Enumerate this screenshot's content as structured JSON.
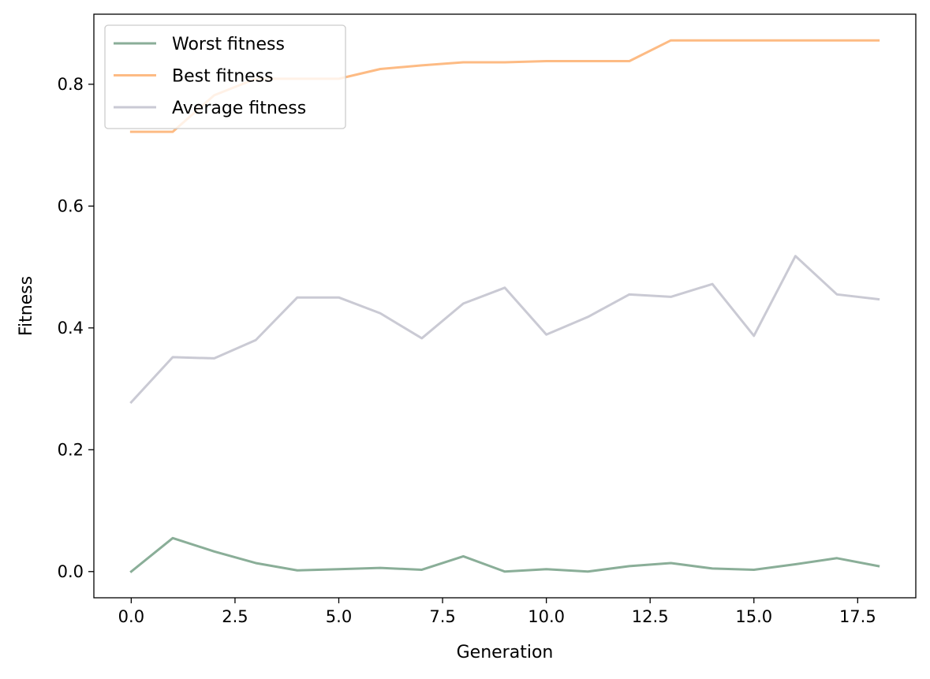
{
  "chart_data": {
    "type": "line",
    "title": "",
    "xlabel": "Generation",
    "ylabel": "Fitness",
    "xlim": [
      -0.9,
      18.9
    ],
    "ylim": [
      -0.043,
      0.915
    ],
    "xticks": [
      0.0,
      2.5,
      5.0,
      7.5,
      10.0,
      12.5,
      15.0,
      17.5
    ],
    "xtick_labels": [
      "0.0",
      "2.5",
      "5.0",
      "7.5",
      "10.0",
      "12.5",
      "15.0",
      "17.5"
    ],
    "yticks": [
      0.0,
      0.2,
      0.4,
      0.6,
      0.8
    ],
    "ytick_labels": [
      "0.0",
      "0.2",
      "0.4",
      "0.6",
      "0.8"
    ],
    "grid": false,
    "legend_position": "top-left",
    "x": [
      0,
      1,
      2,
      3,
      4,
      5,
      6,
      7,
      8,
      9,
      10,
      11,
      12,
      13,
      14,
      15,
      16,
      17,
      18
    ],
    "series": [
      {
        "name": "Worst fitness",
        "color": "#8aae98",
        "values": [
          0.0,
          0.055,
          0.033,
          0.014,
          0.002,
          0.004,
          0.006,
          0.003,
          0.025,
          0.0,
          0.004,
          0.0,
          0.009,
          0.014,
          0.005,
          0.003,
          0.012,
          0.022,
          0.009
        ]
      },
      {
        "name": "Best fitness",
        "color": "#fdbb84",
        "values": [
          0.722,
          0.722,
          0.782,
          0.809,
          0.809,
          0.809,
          0.825,
          0.831,
          0.836,
          0.836,
          0.838,
          0.838,
          0.838,
          0.872,
          0.872,
          0.872,
          0.872,
          0.872,
          0.872
        ]
      },
      {
        "name": "Average fitness",
        "color": "#cacad4",
        "values": [
          0.278,
          0.352,
          0.35,
          0.38,
          0.45,
          0.45,
          0.424,
          0.383,
          0.44,
          0.466,
          0.389,
          0.418,
          0.455,
          0.451,
          0.472,
          0.387,
          0.518,
          0.455,
          0.447
        ]
      }
    ]
  }
}
